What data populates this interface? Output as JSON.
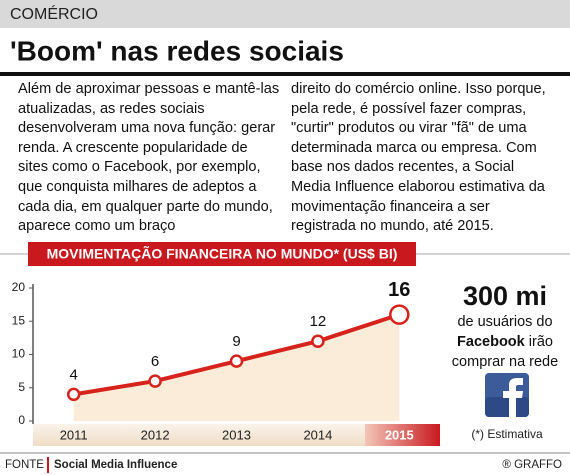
{
  "header": {
    "section": "COMÉRCIO",
    "title": "'Boom' nas redes sociais"
  },
  "columns": [
    "Além de aproximar pessoas e mantê-las atualizadas, as redes sociais desenvolveram uma nova função: gerar renda. A crescente popularidade de sites como o Facebook, por exemplo, que conquista milhares de adeptos a cada dia, em qualquer parte do mundo, aparece como um braço",
    "direito do comércio online. Isso porque, pela rede, é possível fazer compras, \"curtir\" produtos ou virar \"fã\" de uma determinada marca ou empresa. Com base nos dados recentes, a Social Media Influence elaborou estimativa da movimentação financeira a ser registrada no mundo, até 2015."
  ],
  "chart_data": {
    "type": "line",
    "title": "MOVIMENTAÇÃO FINANCEIRA NO MUNDO* (US$ BI)",
    "categories": [
      "2011",
      "2012",
      "2013",
      "2014",
      "2015"
    ],
    "values": [
      4,
      6,
      9,
      12,
      16
    ],
    "color": "#d8231c",
    "fill": "#fbecd9",
    "ylim": [
      0,
      20
    ],
    "yticks": [
      0,
      5,
      10,
      15,
      20
    ],
    "grid": false
  },
  "sidebar": {
    "headline": "300 mi",
    "line1": "de usuários do",
    "brand": "Facebook",
    "line2": "irão",
    "line3": "comprar na rede",
    "note": "(*) Estimativa"
  },
  "footer": {
    "label": "FONTE",
    "source": "Social Media Influence",
    "credit": "® GRAFFO"
  }
}
